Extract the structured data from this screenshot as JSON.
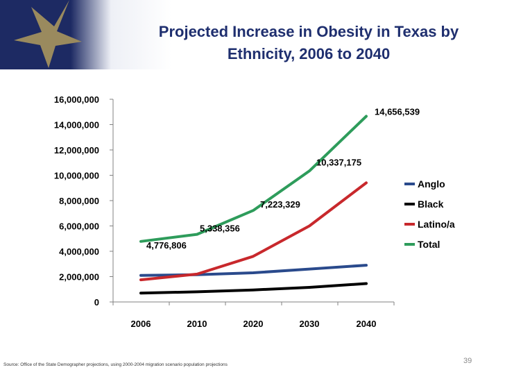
{
  "slide": {
    "title_line1": "Projected Increase in Obesity in Texas by",
    "title_line2": "Ethnicity, 2006 to 2040",
    "source": "Source: Office of the State Demographer projections, using 2000-2004 migration scenario population projections",
    "page_number": "39",
    "colors": {
      "title": "#1f2f6f",
      "header_navy": "#1d2a63",
      "star_gold": "#9a8a5e"
    }
  },
  "chart_data": {
    "type": "line",
    "categories": [
      "2006",
      "2010",
      "2020",
      "2030",
      "2040"
    ],
    "ylim": [
      0,
      16000000
    ],
    "yticks": [
      "0",
      "2,000,000",
      "4,000,000",
      "6,000,000",
      "8,000,000",
      "10,000,000",
      "12,000,000",
      "14,000,000",
      "16,000,000"
    ],
    "grid": false,
    "legend_position": "right",
    "series": [
      {
        "name": "Anglo",
        "color": "#2a4a8c",
        "values": [
          2100000,
          2150000,
          2300000,
          2600000,
          2900000
        ]
      },
      {
        "name": "Black",
        "color": "#000000",
        "values": [
          700000,
          800000,
          950000,
          1150000,
          1450000
        ]
      },
      {
        "name": "Latino/a",
        "color": "#c8282c",
        "values": [
          1750000,
          2200000,
          3600000,
          6000000,
          9400000
        ]
      },
      {
        "name": "Total",
        "color": "#2e9c5b",
        "values": [
          4776806,
          5338356,
          7223329,
          10337175,
          14656539
        ]
      }
    ],
    "data_labels": [
      "4,776,806",
      "5,338,356",
      "7,223,329",
      "10,337,175",
      "14,656,539"
    ]
  }
}
